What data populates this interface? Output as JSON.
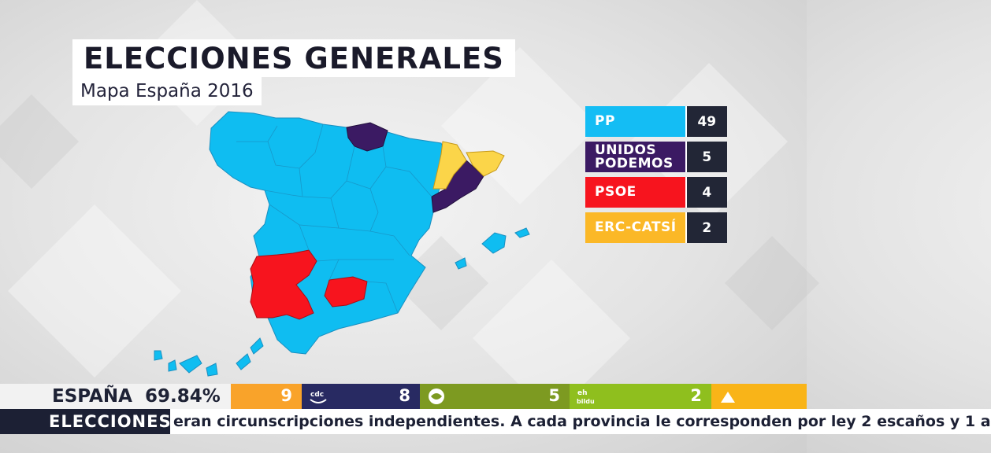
{
  "title": "ELECCIONES GENERALES",
  "subtitle": "Mapa España 2016",
  "legend": [
    {
      "party": "PP",
      "seats": "49",
      "color": "#14bdf4",
      "text_color": "#ffffff"
    },
    {
      "party": "UNIDOS PODEMOS",
      "seats": "5",
      "color": "#3b1a63",
      "text_color": "#ffffff"
    },
    {
      "party": "PSOE",
      "seats": "4",
      "color": "#f7141e",
      "text_color": "#ffffff"
    },
    {
      "party": "ERC-CATSÍ",
      "seats": "2",
      "color": "#fbb827",
      "text_color": "#ffffff"
    }
  ],
  "map_regions": {
    "pp": {
      "color": "#0fbdf1"
    },
    "unidos_podemos": {
      "color": "#3b1a63"
    },
    "psoe": {
      "color": "#f7141e"
    },
    "erc_catsi": {
      "color": "#fbd549"
    }
  },
  "ticker": {
    "country": "ESPAÑA",
    "percent": "69.84%",
    "segments": [
      {
        "logo": "erc-logo",
        "value": "9",
        "color": "#f9a32a"
      },
      {
        "logo": "cdc-logo",
        "logo_text": "cdc",
        "value": "8",
        "color": "#282a62"
      },
      {
        "logo": "pnv-logo",
        "value": "5",
        "color": "#7d9a21"
      },
      {
        "logo": "eh-bildu-logo",
        "logo_text": "eh bildu",
        "value": "2",
        "color": "#8fbf1e"
      },
      {
        "logo": "cc-logo",
        "value": "",
        "color": "#f9b418"
      }
    ]
  },
  "news_ticker": {
    "label": "ELECCIONES",
    "text": "eran circunscripciones independientes. A cada provincia le corresponden por ley 2 escaños y 1 a"
  }
}
